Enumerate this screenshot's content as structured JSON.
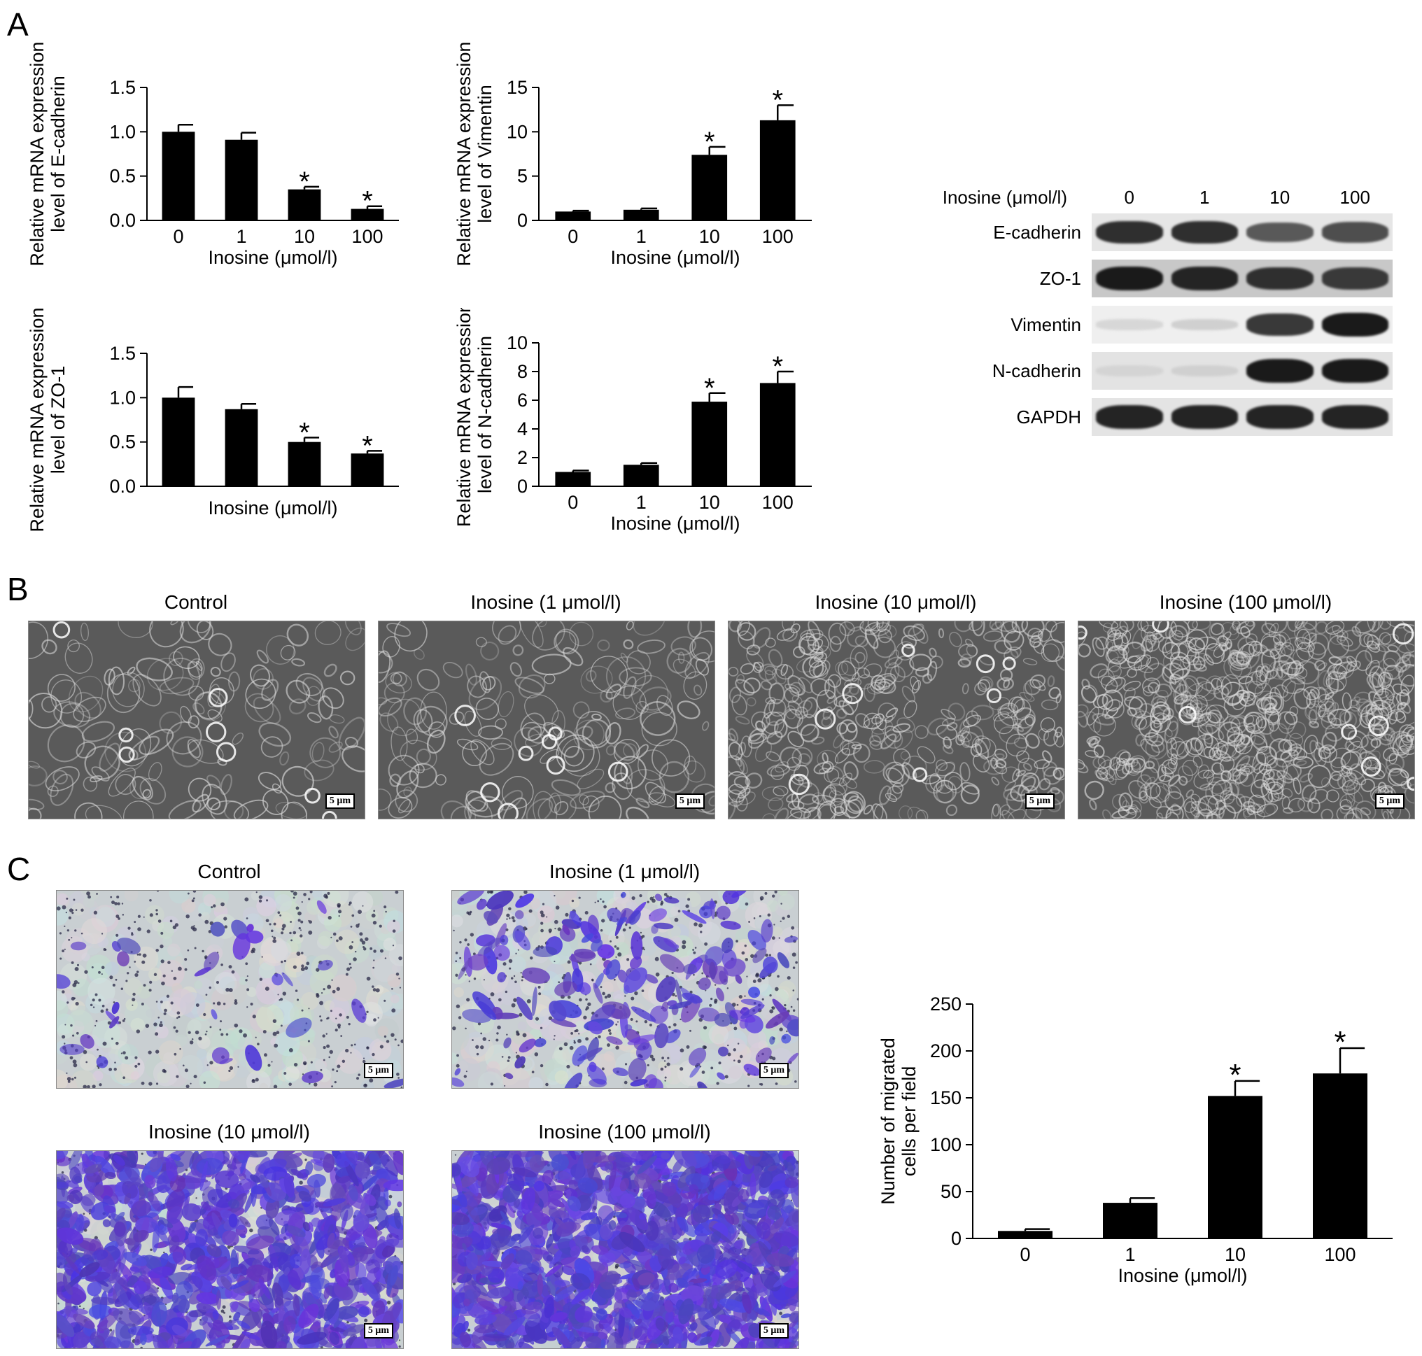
{
  "panels": {
    "a": "A",
    "b": "B",
    "c": "C"
  },
  "chart_data": [
    {
      "id": "ecad",
      "type": "bar",
      "categories": [
        "0",
        "1",
        "10",
        "100"
      ],
      "values": [
        1.0,
        0.91,
        0.35,
        0.13
      ],
      "errors": [
        0.08,
        0.08,
        0.03,
        0.03
      ],
      "significant": [
        false,
        false,
        true,
        true
      ],
      "ylabel": [
        "Relative mRNA expression",
        "level of E-cadherin"
      ],
      "xlabel": "Inosine (μmol/l)",
      "ylim": [
        0,
        1.5
      ],
      "yticks": [
        "0.0",
        "0.5",
        "1.0",
        "1.5"
      ],
      "star": "*"
    },
    {
      "id": "vim",
      "type": "bar",
      "categories": [
        "0",
        "1",
        "10",
        "100"
      ],
      "values": [
        1.0,
        1.2,
        7.4,
        11.3
      ],
      "errors": [
        0.1,
        0.15,
        0.9,
        1.7
      ],
      "significant": [
        false,
        false,
        true,
        true
      ],
      "ylabel": [
        "Relative mRNA expression",
        "level of Vimentin"
      ],
      "xlabel": "Inosine (μmol/l)",
      "ylim": [
        0,
        15
      ],
      "yticks": [
        "0",
        "5",
        "10",
        "15"
      ],
      "star": "*"
    },
    {
      "id": "zo1",
      "type": "bar",
      "categories": [
        "",
        "",
        "",
        ""
      ],
      "values": [
        1.0,
        0.87,
        0.5,
        0.37
      ],
      "errors": [
        0.12,
        0.06,
        0.05,
        0.03
      ],
      "significant": [
        false,
        false,
        true,
        true
      ],
      "ylabel": [
        "Relative mRNA expression",
        "level of ZO-1"
      ],
      "xlabel": "Inosine (μmol/l)",
      "ylim": [
        0,
        1.5
      ],
      "yticks": [
        "0.0",
        "0.5",
        "1.0",
        "1.5"
      ],
      "star": "*"
    },
    {
      "id": "ncad",
      "type": "bar",
      "categories": [
        "0",
        "1",
        "10",
        "100"
      ],
      "values": [
        1.0,
        1.5,
        5.9,
        7.2
      ],
      "errors": [
        0.1,
        0.12,
        0.6,
        0.8
      ],
      "significant": [
        false,
        false,
        true,
        true
      ],
      "ylabel": [
        "Relative mRNA expression",
        "level of N-cadherin"
      ],
      "xlabel": "Inosine (μmol/l)",
      "ylim": [
        0,
        10
      ],
      "yticks": [
        "0",
        "2",
        "4",
        "6",
        "8",
        "10"
      ],
      "star": "*"
    },
    {
      "id": "migr",
      "type": "bar",
      "categories": [
        "0",
        "1",
        "10",
        "100"
      ],
      "values": [
        8,
        38,
        152,
        176
      ],
      "errors": [
        2,
        5,
        16,
        27
      ],
      "significant": [
        false,
        false,
        true,
        true
      ],
      "ylabel": [
        "Number of migrated",
        "cells per field"
      ],
      "xlabel": "Inosine (μmol/l)",
      "ylim": [
        0,
        250
      ],
      "yticks": [
        "0",
        "50",
        "100",
        "150",
        "200",
        "250"
      ],
      "star": "*"
    }
  ],
  "western_blot": {
    "header": "Inosine (μmol/l)",
    "columns": [
      "0",
      "1",
      "10",
      "100"
    ],
    "rows": [
      {
        "label": "E-cadherin",
        "intensity": [
          0.85,
          0.85,
          0.65,
          0.7
        ],
        "bg": "#e6e6e6"
      },
      {
        "label": "ZO-1",
        "intensity": [
          0.95,
          0.9,
          0.85,
          0.8
        ],
        "bg": "#c8c8c8"
      },
      {
        "label": "Vimentin",
        "intensity": [
          0.05,
          0.08,
          0.8,
          0.95
        ],
        "bg": "#efefef"
      },
      {
        "label": "N-cadherin",
        "intensity": [
          0.06,
          0.08,
          0.95,
          0.95
        ],
        "bg": "#e3e3e3"
      },
      {
        "label": "GAPDH",
        "intensity": [
          0.9,
          0.9,
          0.9,
          0.9
        ],
        "bg": "#e4e4e4"
      }
    ]
  },
  "morphology": {
    "captions": [
      "Control",
      "Inosine (1 μmol/l)",
      "Inosine (10 μmol/l)",
      "Inosine (100 μmol/l)"
    ],
    "scale": "5 μm"
  },
  "transwell": {
    "captions": [
      "Control",
      "Inosine (1 μmol/l)",
      "Inosine (10 μmol/l)",
      "Inosine (100 μmol/l)"
    ],
    "scale": "5 μm"
  }
}
